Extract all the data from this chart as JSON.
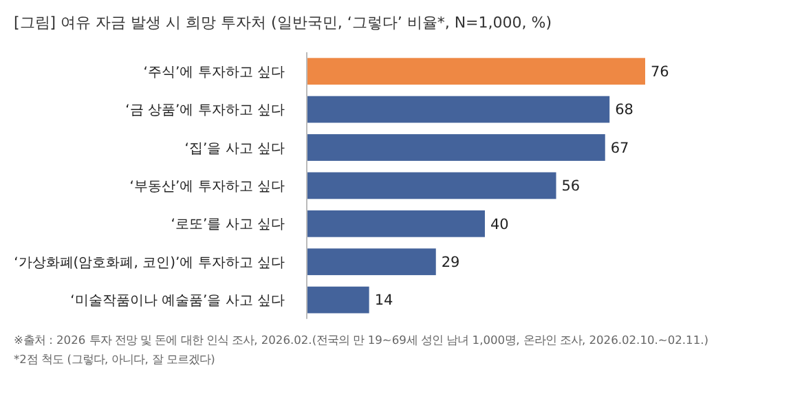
{
  "chart_data": {
    "type": "bar",
    "orientation": "horizontal",
    "title": "[그림] 여유 자금 발생 시 희망 투자처 (일반국민, ‘그렇다’ 비율*, N=1,000, %)",
    "categories": [
      "‘주식’에 투자하고 싶다",
      "‘금 상품’에 투자하고 싶다",
      "‘집’을 사고 싶다",
      "‘부동산’에 투자하고 싶다",
      "‘로또’를 사고 싶다",
      "‘가상화폐(암호화폐, 코인)’에 투자하고 싶다",
      "‘미술작품이나 예술품’을 사고 싶다"
    ],
    "values": [
      76,
      68,
      67,
      56,
      40,
      29,
      14
    ],
    "colors": [
      "#ee8844",
      "#44639b",
      "#44639b",
      "#44639b",
      "#44639b",
      "#44639b",
      "#44639b"
    ],
    "data_labels": true,
    "annotations": [
      "※출처 : 2026 투자 전망 및 돈에 대한 인식 조사, 2026.02.(전국의 만 19~69세 성인 남녀 1,000명, 온라인 조사, 2026.02.10.~02.11.)",
      "*2점 척도 (그렇다, 아니다, 잘 모르겠다)"
    ]
  }
}
